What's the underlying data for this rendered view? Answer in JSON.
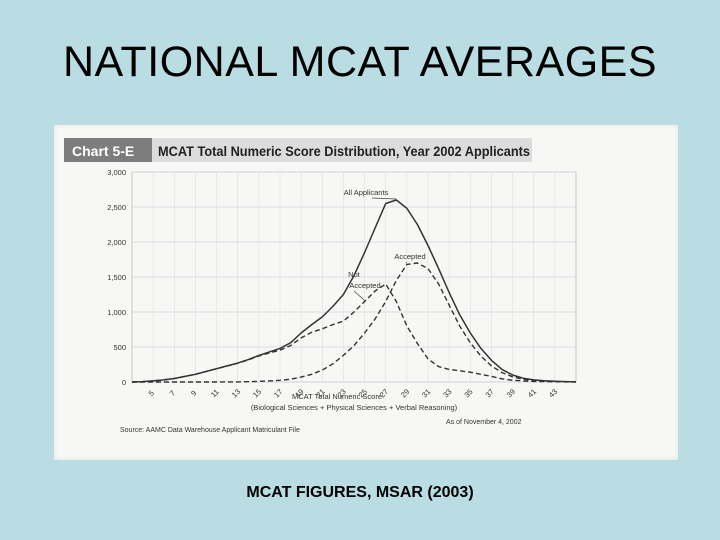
{
  "slide": {
    "title": "NATIONAL MCAT AVERAGES",
    "caption": "MCAT FIGURES, MSAR (2003)"
  },
  "chart_data": {
    "type": "line",
    "label": "Chart 5-E",
    "title": "MCAT Total Numeric Score Distribution, Year 2002 Applicants",
    "xlabel": "MCAT Total Numeric Score",
    "xlabel_sub": "(Biological Sciences + Physical Sciences + Verbal Reasoning)",
    "source": "Source: AAMC Data Warehouse Applicant Matriculant File",
    "as_of": "As of November 4, 2002",
    "x_ticks": [
      "5",
      "7",
      "9",
      "11",
      "13",
      "15",
      "17",
      "19",
      "21",
      "23",
      "25",
      "27",
      "29",
      "31",
      "33",
      "35",
      "37",
      "39",
      "41",
      "43"
    ],
    "y_ticks": [
      "0",
      "500",
      "1,000",
      "1,500",
      "2,000",
      "2,500",
      "3,000"
    ],
    "xlim": [
      3,
      45
    ],
    "ylim": [
      0,
      3000
    ],
    "grid": true,
    "x": [
      3,
      4,
      5,
      6,
      7,
      8,
      9,
      10,
      11,
      12,
      13,
      14,
      15,
      16,
      17,
      18,
      19,
      20,
      21,
      22,
      23,
      24,
      25,
      26,
      27,
      28,
      29,
      30,
      31,
      32,
      33,
      34,
      35,
      36,
      37,
      38,
      39,
      40,
      41,
      42,
      43,
      44,
      45
    ],
    "series": [
      {
        "name": "All Applicants",
        "style": "solid",
        "values": [
          0,
          5,
          15,
          30,
          50,
          80,
          110,
          150,
          190,
          230,
          270,
          320,
          380,
          430,
          480,
          560,
          700,
          820,
          930,
          1080,
          1250,
          1520,
          1850,
          2200,
          2550,
          2600,
          2480,
          2250,
          1950,
          1620,
          1280,
          960,
          700,
          480,
          310,
          180,
          100,
          55,
          30,
          18,
          10,
          5,
          2
        ]
      },
      {
        "name": "Accepted",
        "style": "dashed",
        "values": [
          0,
          0,
          0,
          0,
          0,
          0,
          0,
          0,
          0,
          1,
          2,
          4,
          8,
          15,
          25,
          40,
          70,
          110,
          170,
          260,
          380,
          520,
          700,
          900,
          1150,
          1450,
          1680,
          1700,
          1620,
          1400,
          1100,
          800,
          560,
          370,
          230,
          135,
          75,
          40,
          22,
          12,
          6,
          3,
          1
        ]
      },
      {
        "name": "Not Accepted",
        "style": "dashed",
        "values": [
          0,
          5,
          15,
          30,
          50,
          80,
          110,
          150,
          190,
          229,
          268,
          316,
          372,
          415,
          455,
          520,
          630,
          710,
          760,
          820,
          870,
          1000,
          1150,
          1300,
          1400,
          1150,
          800,
          550,
          330,
          220,
          180,
          160,
          140,
          110,
          80,
          45,
          25,
          15,
          8,
          6,
          4,
          2,
          1
        ]
      }
    ],
    "annotations": [
      {
        "text": "All Applicants",
        "series": 0
      },
      {
        "text": "Accepted",
        "series": 1
      },
      {
        "text": "Not",
        "series": 2
      },
      {
        "text": "Accepted",
        "series": 2
      }
    ]
  }
}
